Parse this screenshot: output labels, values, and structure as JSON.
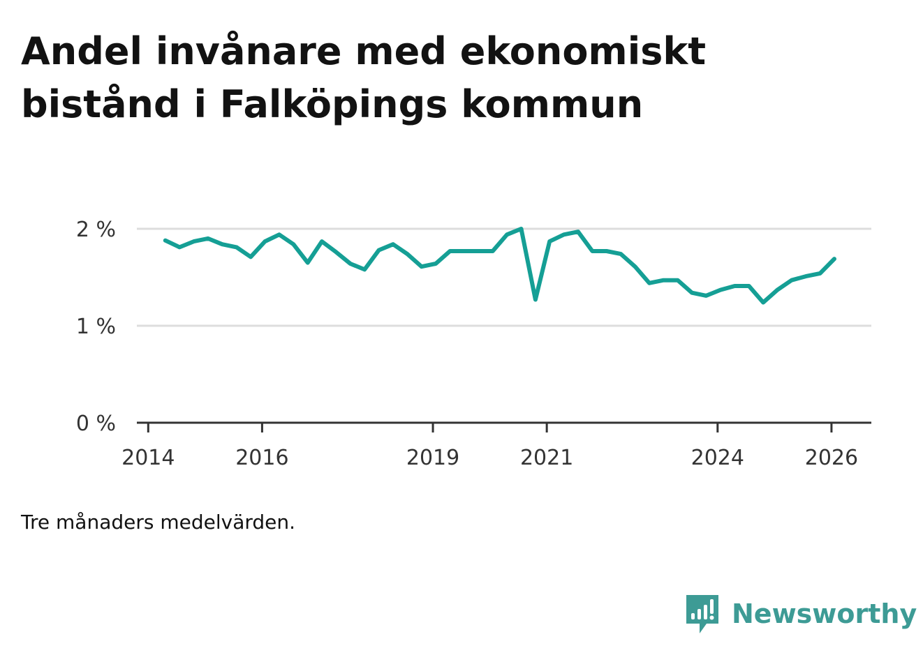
{
  "title": "Andel invånare med ekonomiskt bistånd i Falköpings kommun",
  "note": "Tre månaders medelvärden.",
  "brand": {
    "name": "Newsworthy",
    "icon": "newsworthy-logo-icon",
    "color": "#3d9b95"
  },
  "colors": {
    "line": "#159f95",
    "grid": "#dddddd",
    "axis": "#333333",
    "text": "#121212"
  },
  "chart_data": {
    "type": "line",
    "title": "Andel invånare med ekonomiskt bistånd i Falköpings kommun",
    "xlabel": "",
    "ylabel": "",
    "unit": "%",
    "xlim": [
      2013.8,
      2026.7
    ],
    "ylim": [
      0,
      2
    ],
    "grid": true,
    "y_ticks": [
      {
        "value": 0,
        "label": "0 %"
      },
      {
        "value": 1,
        "label": "1 %"
      },
      {
        "value": 2,
        "label": "2 %"
      }
    ],
    "x_ticks": [
      {
        "value": 2014,
        "label": "2014"
      },
      {
        "value": 2016,
        "label": "2016"
      },
      {
        "value": 2019,
        "label": "2019"
      },
      {
        "value": 2021,
        "label": "2021"
      },
      {
        "value": 2024,
        "label": "2024"
      },
      {
        "value": 2026,
        "label": "2026"
      }
    ],
    "series": [
      {
        "name": "Andel invånare med ekonomiskt bistånd",
        "x": [
          2014.3,
          2014.55,
          2014.8,
          2015.05,
          2015.3,
          2015.55,
          2015.8,
          2016.05,
          2016.3,
          2016.55,
          2016.8,
          2017.05,
          2017.3,
          2017.55,
          2017.8,
          2018.05,
          2018.3,
          2018.55,
          2018.8,
          2019.05,
          2019.3,
          2019.55,
          2019.8,
          2020.05,
          2020.3,
          2020.55,
          2020.8,
          2021.05,
          2021.3,
          2021.55,
          2021.8,
          2022.05,
          2022.3,
          2022.55,
          2022.8,
          2023.05,
          2023.3,
          2023.55,
          2023.8,
          2024.05,
          2024.3,
          2024.55,
          2024.8,
          2025.05,
          2025.3,
          2025.55,
          2025.8,
          2026.05
        ],
        "values": [
          1.88,
          1.81,
          1.87,
          1.9,
          1.84,
          1.81,
          1.71,
          1.87,
          1.94,
          1.84,
          1.65,
          1.87,
          1.76,
          1.64,
          1.58,
          1.78,
          1.84,
          1.74,
          1.61,
          1.64,
          1.77,
          1.77,
          1.77,
          1.77,
          1.94,
          2.0,
          1.27,
          1.87,
          1.94,
          1.97,
          1.77,
          1.77,
          1.74,
          1.61,
          1.44,
          1.47,
          1.47,
          1.34,
          1.31,
          1.37,
          1.41,
          1.41,
          1.24,
          1.37,
          1.47,
          1.51,
          1.54,
          1.69
        ]
      }
    ]
  }
}
